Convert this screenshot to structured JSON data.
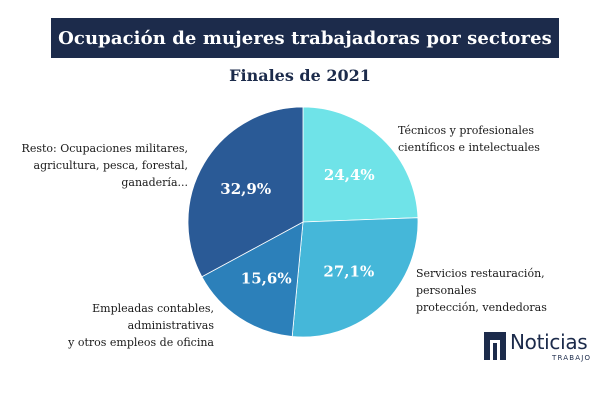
{
  "header": {
    "title": "Ocupación de mujeres trabajadoras por sectores",
    "subtitle": "Finales de 2021"
  },
  "chart_data": {
    "type": "pie",
    "title": "Ocupación de mujeres trabajadoras por sectores",
    "subtitle": "Finales de 2021",
    "slices": [
      {
        "name": "Técnicos y profesionales científicos e intelectuales",
        "value": 24.4,
        "label": "24,4%",
        "color": "#6fe3e8"
      },
      {
        "name": "Servicios restauración, personales protección, vendedoras",
        "value": 27.1,
        "label": "27,1%",
        "color": "#45b7d9"
      },
      {
        "name": "Empleadas contables, administrativas y otros empleos de oficina",
        "value": 15.6,
        "label": "15,6%",
        "color": "#2c80ba"
      },
      {
        "name": "Resto: Ocupaciones militares, agricultura, pesca, forestal, ganadería...",
        "value": 32.9,
        "label": "32,9%",
        "color": "#2a5a96"
      }
    ],
    "start_angle": "top, clockwise"
  },
  "labels": {
    "tecnicos": [
      "Técnicos y profesionales",
      "científicos e intelectuales"
    ],
    "servicios": [
      "Servicios restauración, personales",
      "protección, vendedoras"
    ],
    "empleadas": [
      "Empleadas contables, administrativas",
      "y otros empleos de oficina"
    ],
    "resto": [
      "Resto: Ocupaciones militares,",
      "agricultura, pesca, forestal,",
      "ganadería..."
    ]
  },
  "logo": {
    "word": "Noticias",
    "sub": "TRABAJO",
    "color": "#1c2b4b"
  }
}
